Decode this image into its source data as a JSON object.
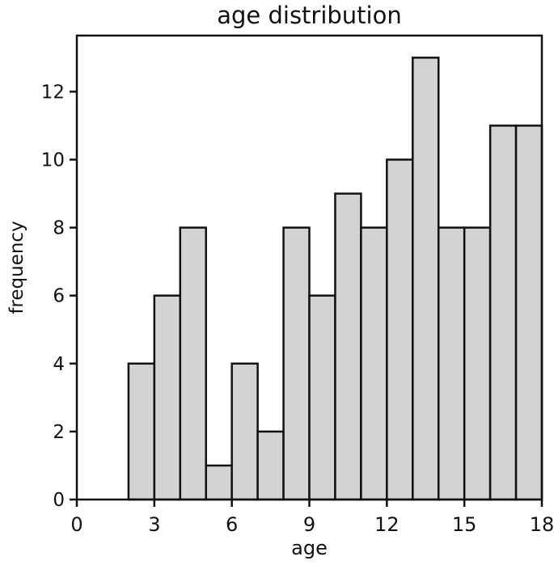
{
  "chart_data": {
    "type": "bar",
    "subtype": "histogram",
    "title": "age distribution",
    "xlabel": "age",
    "ylabel": "frequency",
    "bin_edges": [
      2,
      3,
      4,
      5,
      6,
      7,
      8,
      9,
      10,
      11,
      12,
      13,
      14,
      15,
      16,
      17,
      18
    ],
    "frequencies": [
      4,
      6,
      8,
      1,
      4,
      2,
      8,
      6,
      9,
      8,
      10,
      13,
      8,
      8,
      11,
      11
    ],
    "xticks": [
      0,
      3,
      6,
      9,
      12,
      15,
      18
    ],
    "yticks": [
      0,
      2,
      4,
      6,
      8,
      10,
      12
    ],
    "xlim": [
      0,
      18
    ],
    "ylim": [
      0,
      13.65
    ],
    "grid": false,
    "legend": null,
    "colors": {
      "bar_fill": "#d3d3d3",
      "bar_edge": "#111111",
      "axis": "#111111",
      "text": "#111111",
      "background": "#ffffff"
    }
  }
}
